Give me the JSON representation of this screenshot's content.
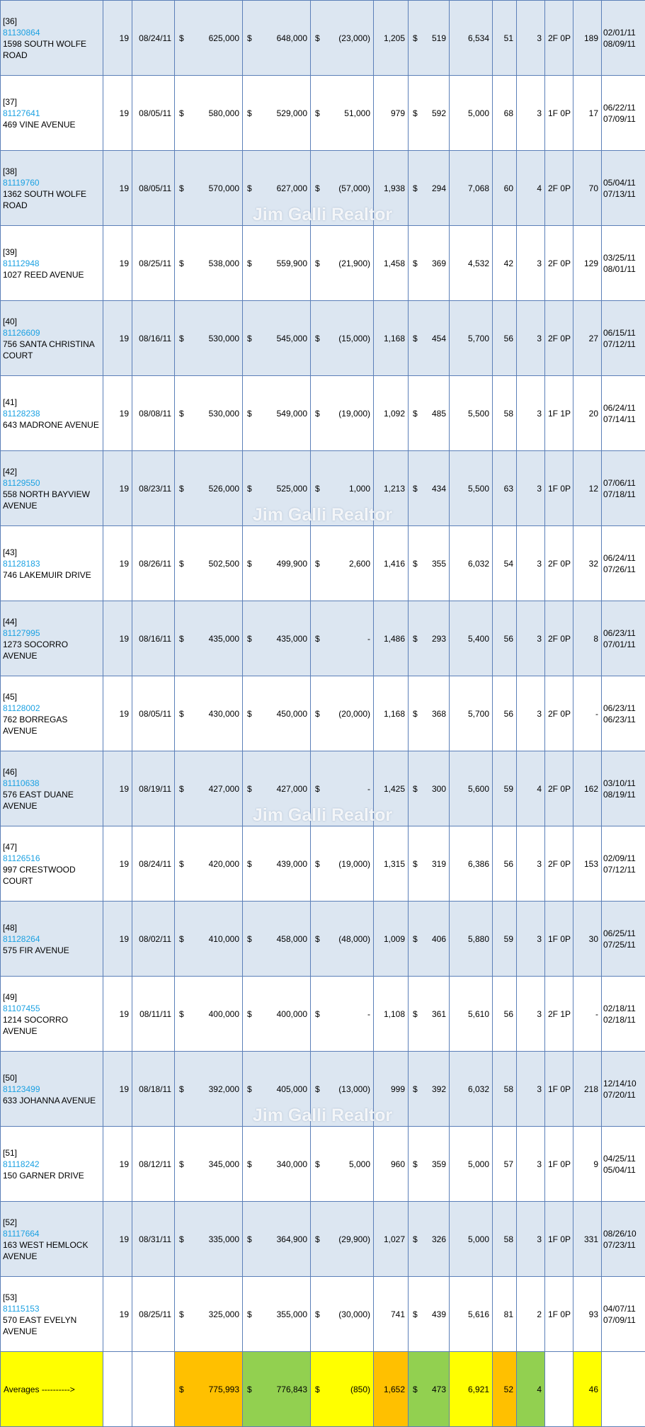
{
  "watermark": "Jim Galli Realtor",
  "rows": [
    {
      "idx": "[36]",
      "mls": "81130864",
      "addr": "1598 SOUTH WOLFE ROAD",
      "dom": "19",
      "close": "08/24/11",
      "sale": "625,000",
      "list": "648,000",
      "diff": "(23,000)",
      "sqft": "1,205",
      "ppsf": "519",
      "lot": "6,534",
      "age": "51",
      "beds": "3",
      "baths": "2F 0P",
      "cdom": "189",
      "d1": "02/01/11",
      "d2": "08/09/11"
    },
    {
      "idx": "[37]",
      "mls": "81127641",
      "addr": "469 VINE AVENUE",
      "dom": "19",
      "close": "08/05/11",
      "sale": "580,000",
      "list": "529,000",
      "diff": "51,000",
      "sqft": "979",
      "ppsf": "592",
      "lot": "5,000",
      "age": "68",
      "beds": "3",
      "baths": "1F 0P",
      "cdom": "17",
      "d1": "06/22/11",
      "d2": "07/09/11"
    },
    {
      "idx": "[38]",
      "mls": "81119760",
      "addr": "1362 SOUTH WOLFE ROAD",
      "dom": "19",
      "close": "08/05/11",
      "sale": "570,000",
      "list": "627,000",
      "diff": "(57,000)",
      "sqft": "1,938",
      "ppsf": "294",
      "lot": "7,068",
      "age": "60",
      "beds": "4",
      "baths": "2F 0P",
      "cdom": "70",
      "d1": "05/04/11",
      "d2": "07/13/11"
    },
    {
      "idx": "[39]",
      "mls": "81112948",
      "addr": "1027 REED AVENUE",
      "dom": "19",
      "close": "08/25/11",
      "sale": "538,000",
      "list": "559,900",
      "diff": "(21,900)",
      "sqft": "1,458",
      "ppsf": "369",
      "lot": "4,532",
      "age": "42",
      "beds": "3",
      "baths": "2F 0P",
      "cdom": "129",
      "d1": "03/25/11",
      "d2": "08/01/11"
    },
    {
      "idx": "[40]",
      "mls": "81126609",
      "addr": "756 SANTA CHRISTINA COURT",
      "dom": "19",
      "close": "08/16/11",
      "sale": "530,000",
      "list": "545,000",
      "diff": "(15,000)",
      "sqft": "1,168",
      "ppsf": "454",
      "lot": "5,700",
      "age": "56",
      "beds": "3",
      "baths": "2F 0P",
      "cdom": "27",
      "d1": "06/15/11",
      "d2": "07/12/11"
    },
    {
      "idx": "[41]",
      "mls": "81128238",
      "addr": "643 MADRONE AVENUE",
      "dom": "19",
      "close": "08/08/11",
      "sale": "530,000",
      "list": "549,000",
      "diff": "(19,000)",
      "sqft": "1,092",
      "ppsf": "485",
      "lot": "5,500",
      "age": "58",
      "beds": "3",
      "baths": "1F 1P",
      "cdom": "20",
      "d1": "06/24/11",
      "d2": "07/14/11"
    },
    {
      "idx": "[42]",
      "mls": "81129550",
      "addr": "558 NORTH BAYVIEW AVENUE",
      "dom": "19",
      "close": "08/23/11",
      "sale": "526,000",
      "list": "525,000",
      "diff": "1,000",
      "sqft": "1,213",
      "ppsf": "434",
      "lot": "5,500",
      "age": "63",
      "beds": "3",
      "baths": "1F 0P",
      "cdom": "12",
      "d1": "07/06/11",
      "d2": "07/18/11"
    },
    {
      "idx": "[43]",
      "mls": "81128183",
      "addr": "746 LAKEMUIR DRIVE",
      "dom": "19",
      "close": "08/26/11",
      "sale": "502,500",
      "list": "499,900",
      "diff": "2,600",
      "sqft": "1,416",
      "ppsf": "355",
      "lot": "6,032",
      "age": "54",
      "beds": "3",
      "baths": "2F 0P",
      "cdom": "32",
      "d1": "06/24/11",
      "d2": "07/26/11"
    },
    {
      "idx": "[44]",
      "mls": "81127995",
      "addr": "1273 SOCORRO AVENUE",
      "dom": "19",
      "close": "08/16/11",
      "sale": "435,000",
      "list": "435,000",
      "diff": "-",
      "sqft": "1,486",
      "ppsf": "293",
      "lot": "5,400",
      "age": "56",
      "beds": "3",
      "baths": "2F 0P",
      "cdom": "8",
      "d1": "06/23/11",
      "d2": "07/01/11"
    },
    {
      "idx": "[45]",
      "mls": "81128002",
      "addr": "762 BORREGAS AVENUE",
      "dom": "19",
      "close": "08/05/11",
      "sale": "430,000",
      "list": "450,000",
      "diff": "(20,000)",
      "sqft": "1,168",
      "ppsf": "368",
      "lot": "5,700",
      "age": "56",
      "beds": "3",
      "baths": "2F 0P",
      "cdom": "-",
      "d1": "06/23/11",
      "d2": "06/23/11"
    },
    {
      "idx": "[46]",
      "mls": "81110638",
      "addr": "576 EAST DUANE AVENUE",
      "dom": "19",
      "close": "08/19/11",
      "sale": "427,000",
      "list": "427,000",
      "diff": "-",
      "sqft": "1,425",
      "ppsf": "300",
      "lot": "5,600",
      "age": "59",
      "beds": "4",
      "baths": "2F 0P",
      "cdom": "162",
      "d1": "03/10/11",
      "d2": "08/19/11"
    },
    {
      "idx": "[47]",
      "mls": "81126516",
      "addr": "997 CRESTWOOD COURT",
      "dom": "19",
      "close": "08/24/11",
      "sale": "420,000",
      "list": "439,000",
      "diff": "(19,000)",
      "sqft": "1,315",
      "ppsf": "319",
      "lot": "6,386",
      "age": "56",
      "beds": "3",
      "baths": "2F 0P",
      "cdom": "153",
      "d1": "02/09/11",
      "d2": "07/12/11"
    },
    {
      "idx": "[48]",
      "mls": "81128264",
      "addr": "575 FIR AVENUE",
      "dom": "19",
      "close": "08/02/11",
      "sale": "410,000",
      "list": "458,000",
      "diff": "(48,000)",
      "sqft": "1,009",
      "ppsf": "406",
      "lot": "5,880",
      "age": "59",
      "beds": "3",
      "baths": "1F 0P",
      "cdom": "30",
      "d1": "06/25/11",
      "d2": "07/25/11"
    },
    {
      "idx": "[49]",
      "mls": "81107455",
      "addr": "1214 SOCORRO AVENUE",
      "dom": "19",
      "close": "08/11/11",
      "sale": "400,000",
      "list": "400,000",
      "diff": "-",
      "sqft": "1,108",
      "ppsf": "361",
      "lot": "5,610",
      "age": "56",
      "beds": "3",
      "baths": "2F 1P",
      "cdom": "-",
      "d1": "02/18/11",
      "d2": "02/18/11"
    },
    {
      "idx": "[50]",
      "mls": "81123499",
      "addr": "633 JOHANNA AVENUE",
      "dom": "19",
      "close": "08/18/11",
      "sale": "392,000",
      "list": "405,000",
      "diff": "(13,000)",
      "sqft": "999",
      "ppsf": "392",
      "lot": "6,032",
      "age": "58",
      "beds": "3",
      "baths": "1F 0P",
      "cdom": "218",
      "d1": "12/14/10",
      "d2": "07/20/11"
    },
    {
      "idx": "[51]",
      "mls": "81118242",
      "addr": "150 GARNER DRIVE",
      "dom": "19",
      "close": "08/12/11",
      "sale": "345,000",
      "list": "340,000",
      "diff": "5,000",
      "sqft": "960",
      "ppsf": "359",
      "lot": "5,000",
      "age": "57",
      "beds": "3",
      "baths": "1F 0P",
      "cdom": "9",
      "d1": "04/25/11",
      "d2": "05/04/11"
    },
    {
      "idx": "[52]",
      "mls": "81117664",
      "addr": "163 WEST HEMLOCK AVENUE",
      "dom": "19",
      "close": "08/31/11",
      "sale": "335,000",
      "list": "364,900",
      "diff": "(29,900)",
      "sqft": "1,027",
      "ppsf": "326",
      "lot": "5,000",
      "age": "58",
      "beds": "3",
      "baths": "1F 0P",
      "cdom": "331",
      "d1": "08/26/10",
      "d2": "07/23/11"
    },
    {
      "idx": "[53]",
      "mls": "81115153",
      "addr": "570 EAST EVELYN AVENUE",
      "dom": "19",
      "close": "08/25/11",
      "sale": "325,000",
      "list": "355,000",
      "diff": "(30,000)",
      "sqft": "741",
      "ppsf": "439",
      "lot": "5,616",
      "age": "81",
      "beds": "2",
      "baths": "1F 0P",
      "cdom": "93",
      "d1": "04/07/11",
      "d2": "07/09/11"
    }
  ],
  "averages": {
    "label": "Averages ---------->",
    "currency": "$",
    "sale": "775,993",
    "list": "776,843",
    "diff": "(850)",
    "sqft": "1,652",
    "ppsf": "473",
    "lot": "6,921",
    "age": "52",
    "beds": "4",
    "cdom": "46"
  },
  "colors": {
    "shade": "#dce6f1",
    "yellow": "#ffff00",
    "orange": "#ffc000",
    "green": "#92d050",
    "mls_link": "#1ba1e2",
    "grid": "#5b7fb8"
  }
}
